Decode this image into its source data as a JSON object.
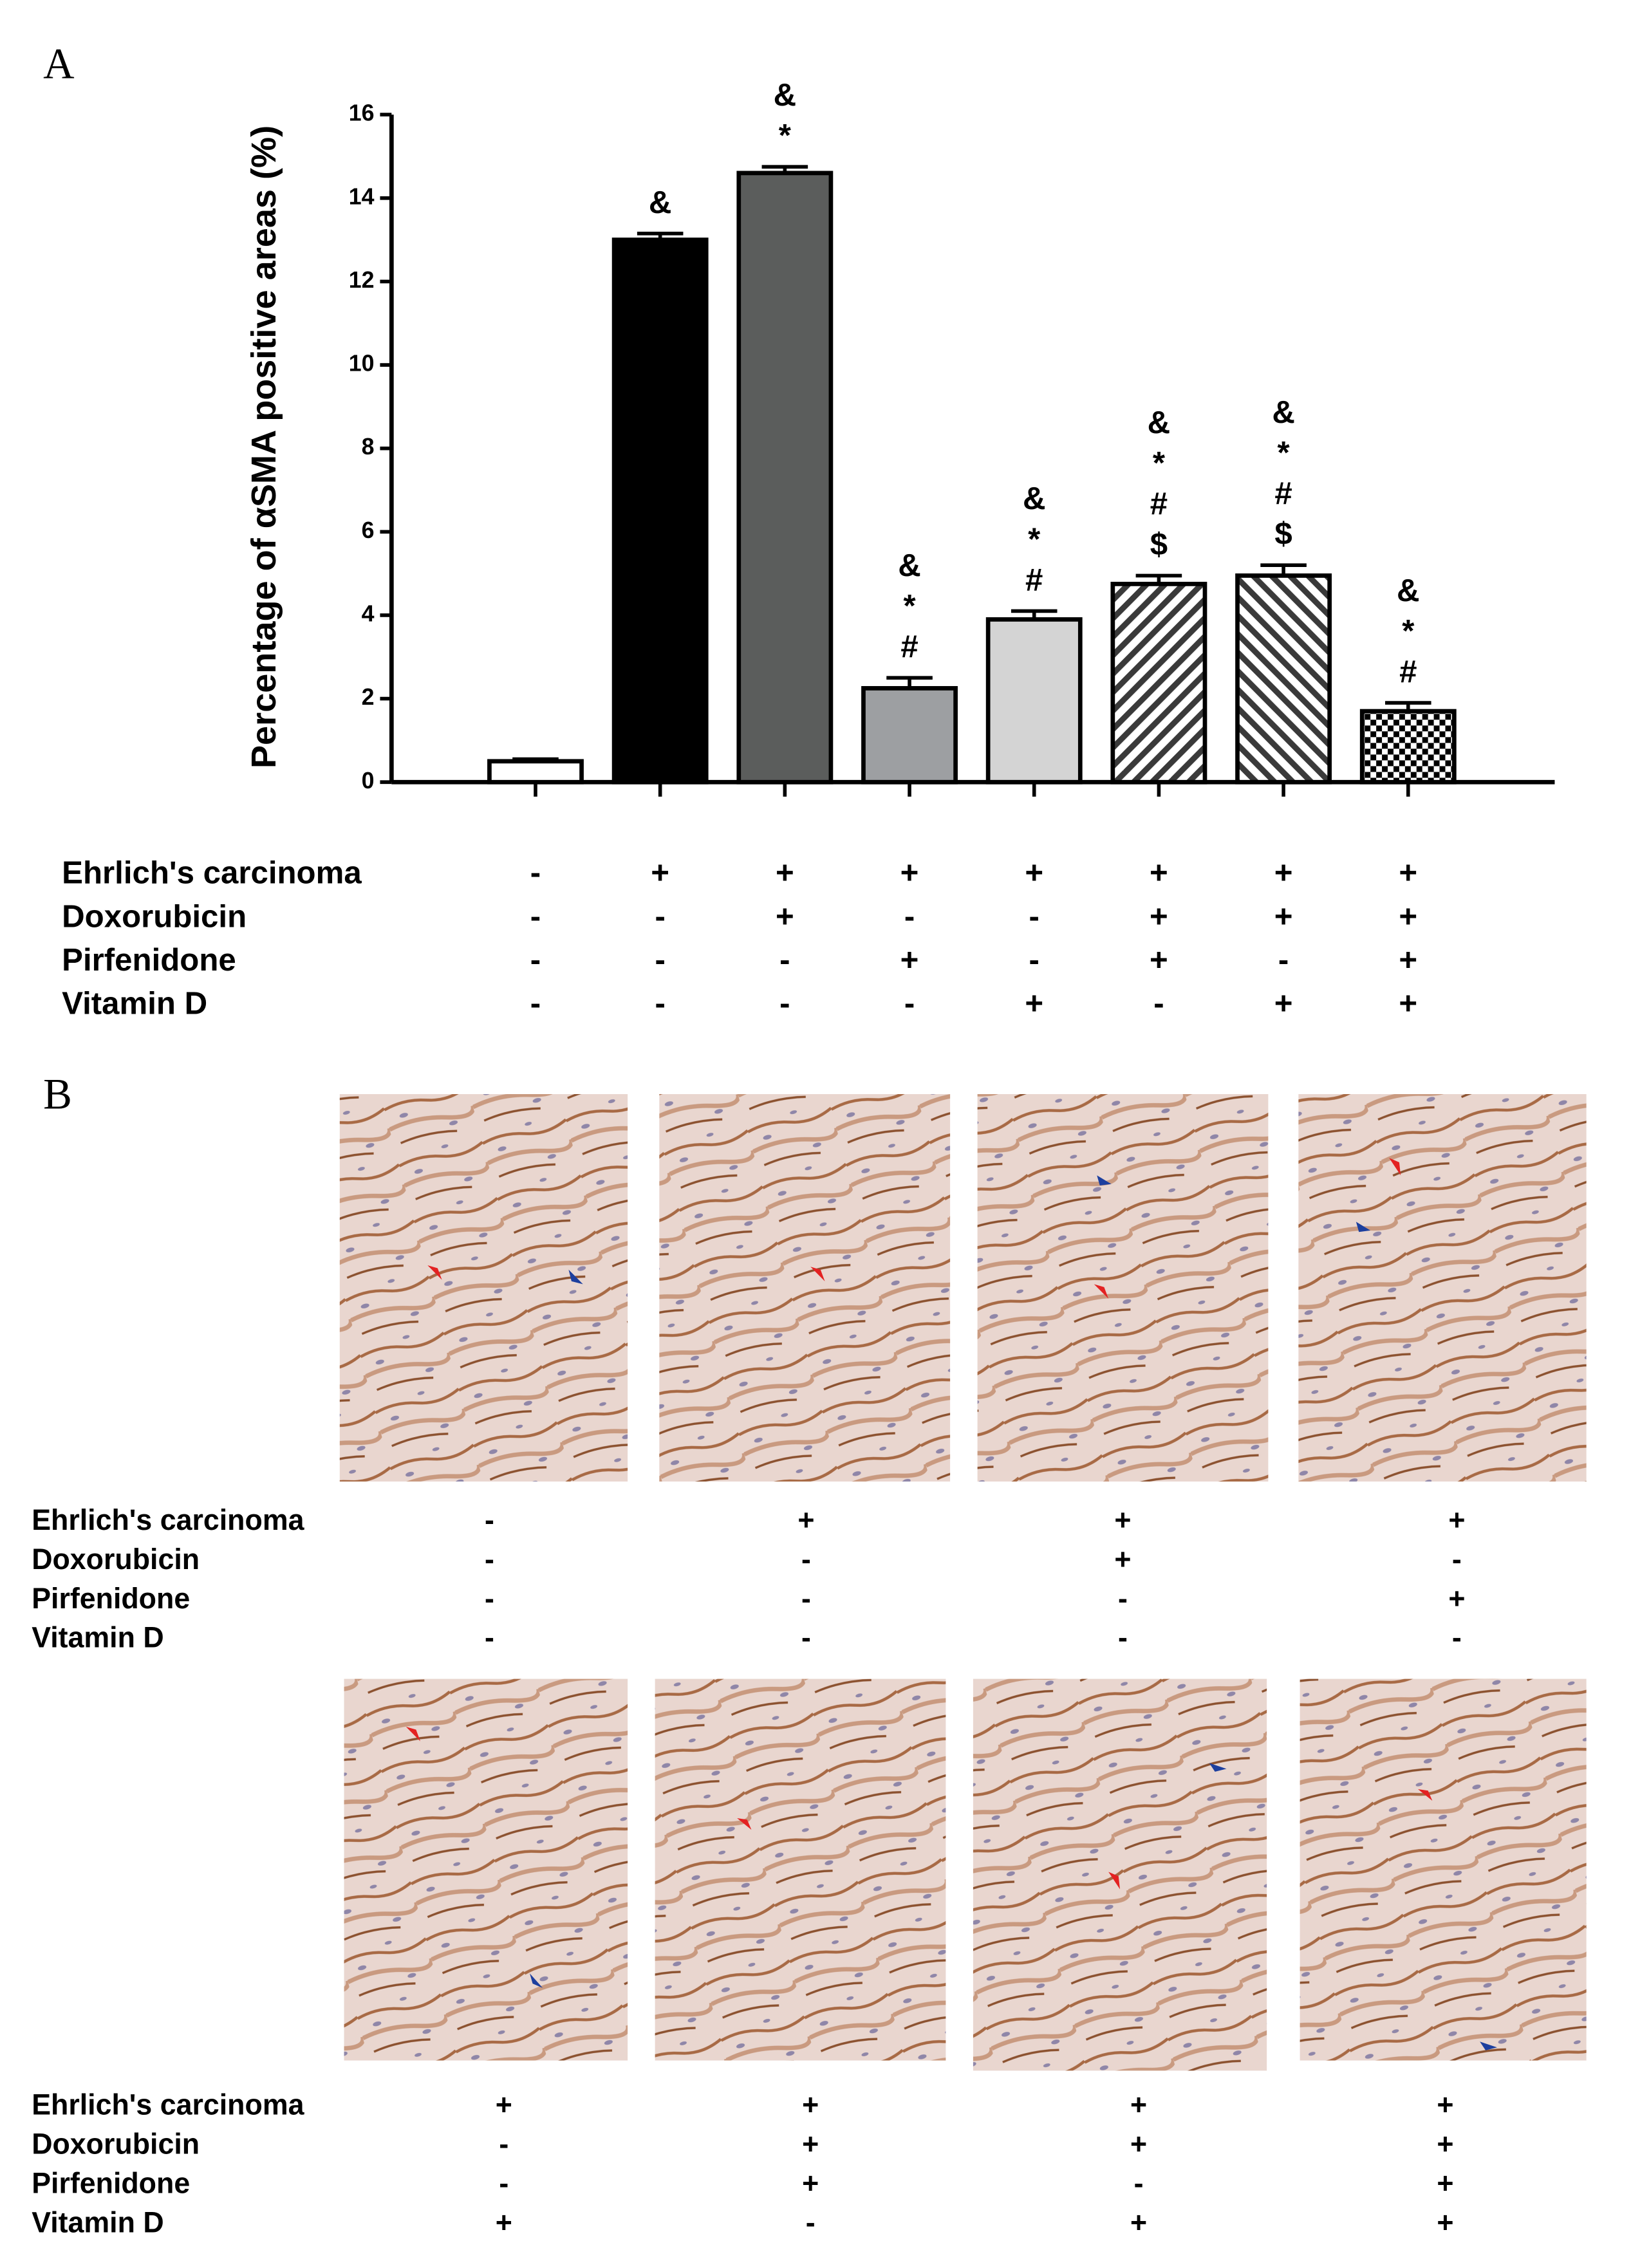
{
  "chart_data": {
    "type": "bar",
    "panel_label": "A",
    "ylabel": "Percentage of αSMA positive areas (%)",
    "values": [
      0.5,
      13.0,
      14.6,
      2.25,
      3.9,
      4.75,
      4.95,
      1.7
    ],
    "errors": [
      0.05,
      0.15,
      0.15,
      0.25,
      0.2,
      0.2,
      0.25,
      0.2
    ],
    "colors": [
      "#ffffff",
      "#000000",
      "#5b5d5c",
      "#9d9fa2",
      "#d4d4d4",
      "#3a3a3a",
      "#3a3a3a",
      "#000000"
    ],
    "patterns": [
      "solid",
      "solid",
      "solid",
      "solid",
      "solid",
      "hatch-right",
      "hatch-left",
      "checker"
    ],
    "annotations": [
      [],
      [
        "&"
      ],
      [
        "&",
        "*"
      ],
      [
        "&",
        "*",
        "#"
      ],
      [
        "&",
        "*",
        "#"
      ],
      [
        "&",
        "*",
        "#",
        "$"
      ],
      [
        "&",
        "*",
        "#",
        "$"
      ],
      [
        "&",
        "*",
        "#"
      ]
    ],
    "ylim": [
      0,
      16
    ],
    "yticks": [
      0,
      2,
      4,
      6,
      8,
      10,
      12,
      14,
      16
    ],
    "treatments": [
      {
        "name": "Ehrlich's carcinoma",
        "signs": [
          "-",
          "+",
          "+",
          "+",
          "+",
          "+",
          "+",
          "+"
        ]
      },
      {
        "name": "Doxorubicin",
        "signs": [
          "-",
          "-",
          "+",
          "-",
          "-",
          "+",
          "+",
          "+"
        ]
      },
      {
        "name": "Pirfenidone",
        "signs": [
          "-",
          "-",
          "-",
          "+",
          "-",
          "+",
          "-",
          "+"
        ]
      },
      {
        "name": "Vitamin D",
        "signs": [
          "-",
          "-",
          "-",
          "-",
          "+",
          "-",
          "+",
          "+"
        ]
      }
    ]
  },
  "panel_b": {
    "label": "B",
    "groups": [
      {
        "rows": [
          {
            "name": "Ehrlich's carcinoma",
            "signs": [
              "-",
              "+",
              "+",
              "+"
            ]
          },
          {
            "name": "Doxorubicin",
            "signs": [
              "-",
              "-",
              "+",
              "-"
            ]
          },
          {
            "name": "Pirfenidone",
            "signs": [
              "-",
              "-",
              "-",
              "+"
            ]
          },
          {
            "name": "Vitamin D",
            "signs": [
              "-",
              "-",
              "-",
              "-"
            ]
          }
        ]
      },
      {
        "rows": [
          {
            "name": "Ehrlich's carcinoma",
            "signs": [
              "+",
              "+",
              "+",
              "+"
            ]
          },
          {
            "name": "Doxorubicin",
            "signs": [
              "-",
              "+",
              "+",
              "+"
            ]
          },
          {
            "name": "Pirfenidone",
            "signs": [
              "-",
              "+",
              "-",
              "+"
            ]
          },
          {
            "name": "Vitamin D",
            "signs": [
              "+",
              "-",
              "+",
              "+"
            ]
          }
        ]
      }
    ]
  }
}
